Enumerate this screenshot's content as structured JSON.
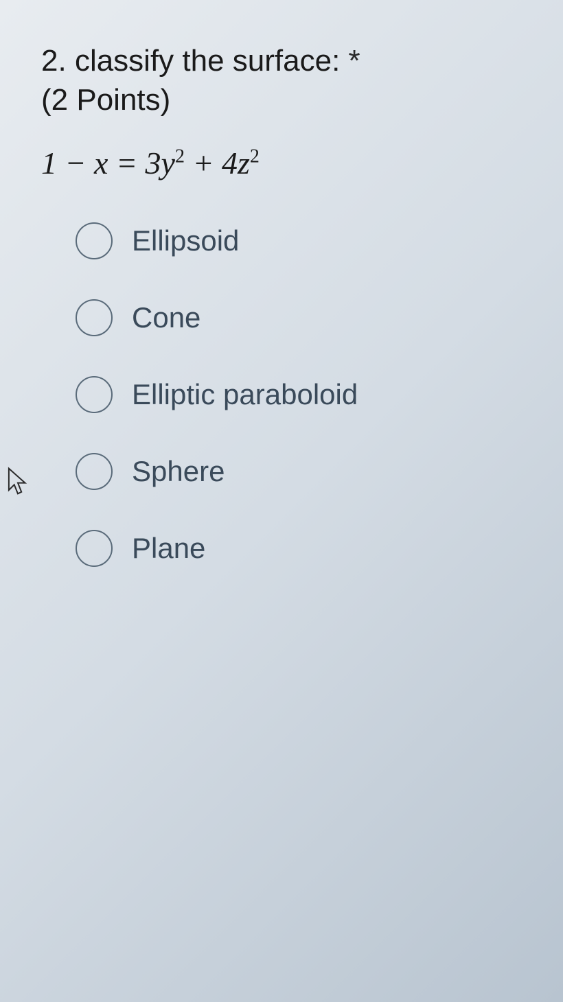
{
  "question": {
    "number": "2.",
    "text": "classify the surface:",
    "required_marker": "*",
    "points": "(2 Points)",
    "equation_html": "1 − <span class='var'>x</span> = 3<span class='var'>y</span><sup>2</sup> + 4<span class='var'>z</span><sup>2</sup>"
  },
  "options": [
    {
      "label": "Ellipsoid"
    },
    {
      "label": "Cone"
    },
    {
      "label": "Elliptic paraboloid"
    },
    {
      "label": "Sphere"
    },
    {
      "label": "Plane"
    }
  ],
  "styles": {
    "background_gradient": [
      "#e8ecf0",
      "#d4dce4",
      "#b8c4d0"
    ],
    "text_color": "#1a1a1a",
    "option_text_color": "#3a4a5a",
    "radio_border_color": "#5a6b7a",
    "title_fontsize": 44,
    "equation_fontsize": 46,
    "option_fontsize": 42,
    "radio_size": 54
  }
}
